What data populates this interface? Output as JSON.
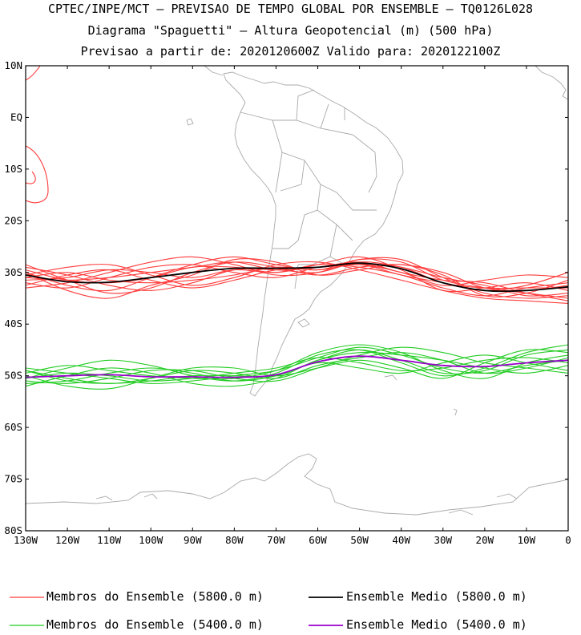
{
  "header": {
    "line1": "CPTEC/INPE/MCT – PREVISAO DE TEMPO GLOBAL POR ENSEMBLE – TQ0126L028",
    "line2": "Diagrama \"Spaguetti\" – Altura Geopotencial (m) (500 hPa)",
    "line3": "Previsao a partir de: 2020120600Z  Valido para: 2020122100Z"
  },
  "legend": {
    "red_members": "Membros do Ensemble (5800.0 m)",
    "black_mean": "Ensemble Medio (5800.0 m)",
    "green_members": "Membros do Ensemble (5400.0 m)",
    "purple_mean": "Ensemble Medio (5400.0 m)"
  },
  "chart_data": {
    "type": "line",
    "xlim": [
      -130,
      0
    ],
    "ylim": [
      -80,
      10
    ],
    "x_ticks": [
      "130W",
      "120W",
      "110W",
      "100W",
      "90W",
      "80W",
      "70W",
      "60W",
      "50W",
      "40W",
      "30W",
      "20W",
      "10W",
      "0"
    ],
    "y_ticks": [
      "10N",
      "EQ",
      "10S",
      "20S",
      "30S",
      "40S",
      "50S",
      "60S",
      "70S",
      "80S"
    ],
    "colors": {
      "red_members": "#ff3b3b",
      "black_mean": "#000000",
      "green_members": "#22cc22",
      "purple_mean": "#9900cc",
      "coast": "#a9a9a9"
    },
    "x": [
      -130,
      -120,
      -110,
      -100,
      -90,
      -80,
      -70,
      -60,
      -50,
      -40,
      -30,
      -20,
      -10,
      0
    ],
    "series": [
      {
        "name": "Ensemble Medio (5800.0 m)",
        "color": "#000000",
        "width": 1.8,
        "values": [
          -30.5,
          -31.8,
          -31.9,
          -31.0,
          -30.0,
          -29.2,
          -29.2,
          -29.0,
          -28.2,
          -29.3,
          -32.0,
          -33.5,
          -33.5,
          -32.8
        ]
      },
      {
        "name": "Ensemble Medio (5400.0 m)",
        "color": "#9900cc",
        "width": 1.8,
        "values": [
          -50.3,
          -50.0,
          -49.8,
          -50.2,
          -50.2,
          -50.3,
          -49.8,
          -47.3,
          -46.2,
          -47.0,
          -48.0,
          -48.2,
          -47.5,
          -47.0
        ]
      }
    ],
    "member_groups": [
      {
        "name": "Membros do Ensemble (5800.0 m)",
        "color": "#ff3b3b",
        "members": [
          [
            -30.0,
            -32.5,
            -33.5,
            -31.0,
            -28.5,
            -27.0,
            -28.5,
            -29.5,
            -27.5,
            -28.0,
            -31.5,
            -33.0,
            -34.0,
            -35.0
          ],
          [
            -31.5,
            -31.0,
            -29.5,
            -30.0,
            -31.0,
            -29.5,
            -30.0,
            -28.5,
            -29.0,
            -30.5,
            -33.0,
            -34.5,
            -33.0,
            -32.0
          ],
          [
            -29.0,
            -30.5,
            -32.5,
            -33.5,
            -32.0,
            -29.5,
            -29.5,
            -30.0,
            -28.0,
            -29.0,
            -31.0,
            -32.5,
            -34.5,
            -34.0
          ],
          [
            -32.0,
            -33.0,
            -31.0,
            -29.0,
            -28.5,
            -30.0,
            -31.0,
            -29.0,
            -28.5,
            -30.0,
            -32.5,
            -31.5,
            -30.5,
            -31.0
          ],
          [
            -30.5,
            -29.0,
            -28.5,
            -30.5,
            -32.5,
            -31.0,
            -28.5,
            -28.0,
            -29.5,
            -31.5,
            -33.5,
            -35.0,
            -35.5,
            -36.0
          ],
          [
            -28.5,
            -31.5,
            -34.0,
            -33.0,
            -30.0,
            -28.0,
            -29.0,
            -30.5,
            -29.0,
            -28.5,
            -30.0,
            -33.0,
            -33.5,
            -32.5
          ],
          [
            -33.0,
            -32.0,
            -30.0,
            -28.0,
            -27.0,
            -28.5,
            -30.5,
            -30.0,
            -27.5,
            -27.5,
            -31.0,
            -34.0,
            -35.0,
            -34.5
          ],
          [
            -31.0,
            -30.0,
            -31.5,
            -32.0,
            -31.5,
            -30.5,
            -29.0,
            -29.5,
            -28.5,
            -30.5,
            -32.0,
            -33.5,
            -32.5,
            -30.0
          ],
          [
            -29.5,
            -31.5,
            -32.0,
            -31.0,
            -29.0,
            -29.0,
            -30.0,
            -28.5,
            -27.0,
            -29.5,
            -33.5,
            -33.0,
            -32.0,
            -33.5
          ],
          [
            -32.5,
            -30.5,
            -29.5,
            -31.5,
            -33.0,
            -31.5,
            -29.5,
            -29.0,
            -28.0,
            -30.0,
            -31.5,
            -32.0,
            -34.0,
            -35.5
          ],
          [
            -30.0,
            -33.5,
            -35.0,
            -32.5,
            -30.5,
            -27.5,
            -28.0,
            -30.5,
            -29.5,
            -28.5,
            -30.5,
            -34.5,
            -34.0,
            -31.5
          ],
          [
            -31.0,
            -31.5,
            -31.0,
            -30.0,
            -29.0,
            -28.0,
            -29.5,
            -29.0,
            -28.5,
            -29.0,
            -32.0,
            -33.0,
            -33.0,
            -33.0
          ]
        ]
      },
      {
        "name": "Membros do Ensemble (5400.0 m)",
        "color": "#22cc22",
        "members": [
          [
            -50.5,
            -48.5,
            -47.0,
            -48.0,
            -50.0,
            -51.0,
            -49.5,
            -46.0,
            -45.0,
            -47.5,
            -50.0,
            -48.5,
            -45.5,
            -44.0
          ],
          [
            -49.0,
            -50.5,
            -51.5,
            -50.5,
            -49.0,
            -49.5,
            -50.5,
            -48.0,
            -46.5,
            -45.5,
            -47.0,
            -49.5,
            -48.5,
            -46.5
          ],
          [
            -51.5,
            -51.0,
            -49.5,
            -48.5,
            -49.5,
            -51.0,
            -50.0,
            -47.5,
            -48.5,
            -49.5,
            -47.5,
            -46.0,
            -47.5,
            -49.0
          ],
          [
            -48.5,
            -49.5,
            -50.5,
            -51.5,
            -51.0,
            -50.0,
            -49.0,
            -46.5,
            -44.5,
            -46.0,
            -48.5,
            -49.5,
            -48.0,
            -47.0
          ],
          [
            -50.0,
            -52.0,
            -52.5,
            -50.5,
            -48.5,
            -48.5,
            -50.0,
            -48.5,
            -47.0,
            -48.5,
            -50.5,
            -47.5,
            -45.0,
            -45.5
          ],
          [
            -52.0,
            -50.0,
            -48.5,
            -49.5,
            -51.5,
            -52.0,
            -50.5,
            -47.0,
            -45.5,
            -46.0,
            -47.0,
            -48.5,
            -49.5,
            -48.0
          ],
          [
            -49.5,
            -48.0,
            -49.0,
            -50.0,
            -50.5,
            -50.5,
            -49.0,
            -45.5,
            -44.0,
            -45.5,
            -49.0,
            -50.5,
            -47.5,
            -46.0
          ],
          [
            -51.0,
            -51.5,
            -50.5,
            -49.0,
            -49.0,
            -50.5,
            -51.0,
            -48.5,
            -46.0,
            -44.5,
            -45.5,
            -47.5,
            -48.5,
            -49.5
          ],
          [
            -50.5,
            -49.5,
            -50.0,
            -51.0,
            -50.5,
            -49.5,
            -48.5,
            -46.5,
            -47.5,
            -49.0,
            -48.5,
            -47.0,
            -46.5,
            -47.5
          ],
          [
            -49.0,
            -51.0,
            -51.5,
            -51.0,
            -50.0,
            -50.0,
            -50.0,
            -47.0,
            -45.0,
            -47.0,
            -49.5,
            -49.0,
            -46.0,
            -45.0
          ]
        ]
      }
    ]
  }
}
